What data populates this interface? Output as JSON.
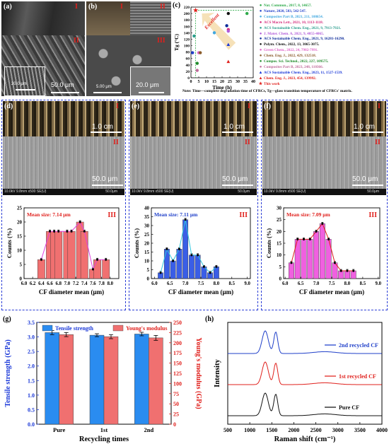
{
  "figure": {
    "panel_labels": {
      "a": "(a)",
      "b": "(b)",
      "c": "(c)",
      "d": "(d)",
      "e": "(e)",
      "f": "(f)",
      "g": "(g)",
      "h": "(h)"
    },
    "roman": {
      "I": "I",
      "II": "II",
      "III": "III"
    },
    "scalebars": {
      "a_inset": "20.0 μm",
      "a_main": "50.0 μm",
      "b_inset": "5.00 μm",
      "b_main": "20.0 μm",
      "cm": "1.0 cm",
      "sem": "50.0 μm"
    },
    "sem_strip": "10.0kV 9.8mm x500 SE(U)",
    "sem_strip_right": "50.0μm"
  },
  "panel_c": {
    "excellent": "Excellent",
    "ylabel": "Tg (°C)",
    "xlabel": "Time (h)",
    "note": "Note: Time—complete degradation time of CFRCs, Tg—glass transition temperature of CFRCs' matrix.",
    "legend": [
      {
        "label": "Nat. Commun., 2017, 8, 14657.",
        "color": "#2eaa4a",
        "marker": "circle"
      },
      {
        "label": "Nature, 2020, 583, 542-547.",
        "color": "#1f3fc9",
        "marker": "circle"
      },
      {
        "label": "Composites Part B, 2021, 211, 108654.",
        "color": "#41a8e0",
        "marker": "circle"
      },
      {
        "label": "ACS Macro Lett., 2021, 10, 1113-1118.",
        "color": "#d42a7a",
        "marker": "circle"
      },
      {
        "label": "ACS Sustainable Chem. Eng., 2021, 9, 7913-7921.",
        "color": "#2a9c8c",
        "marker": "circle"
      },
      {
        "label": "J. Mater. Chem. A, 2021, 9, 4055-4065.",
        "color": "#b25ad8",
        "marker": "circle"
      },
      {
        "label": "ACS Sustainable Chem. Eng., 2021, 9, 16281-16290.",
        "color": "#0c2a9a",
        "marker": "circle"
      },
      {
        "label": "Polym. Chem., 2022, 13, 3065-3075.",
        "color": "#111111",
        "marker": "circle"
      },
      {
        "label": "Green Chem., 2022, 24, 7982-7991.",
        "color": "#e065c8",
        "marker": "circle"
      },
      {
        "label": "Chem. Eng. J., 2022, 429, 132518.",
        "color": "#8a5a2a",
        "marker": "circle"
      },
      {
        "label": "Compos. Sci. Technol., 2022, 227, 109575.",
        "color": "#1f8a2a",
        "marker": "circle"
      },
      {
        "label": "Composites Part B, 2023, 248, 110366.",
        "color": "#c06a9a",
        "marker": "circle"
      },
      {
        "label": "ACS Sustainable Chem. Eng., 2023, 11, 1527-1539.",
        "color": "#1a38d8",
        "marker": "triangle"
      },
      {
        "label": "Chem. Eng. J., 2023, 454, 139992.",
        "color": "#e0201c",
        "marker": "triangle"
      },
      {
        "label": "This work",
        "color": "#e0201c",
        "marker": "star"
      }
    ]
  },
  "chart_data": [
    {
      "id": "c",
      "type": "scatter",
      "xlabel": "Time (h)",
      "ylabel": "Tg (°C)",
      "xlim": [
        0,
        40
      ],
      "ylim": [
        0,
        220
      ],
      "xticks": [
        0,
        5,
        10,
        15,
        20,
        25,
        30,
        35,
        40
      ],
      "yticks": [
        0,
        20,
        40,
        60,
        80,
        100,
        120,
        140,
        160,
        180,
        200,
        220
      ],
      "points": [
        {
          "x": 36,
          "y": 200,
          "color": "#2eaa4a",
          "marker": "circle"
        },
        {
          "x": 24,
          "y": 200,
          "color": "#111111",
          "marker": "circle"
        },
        {
          "x": 23,
          "y": 162,
          "color": "#0c2a9a",
          "marker": "circle"
        },
        {
          "x": 24,
          "y": 150,
          "color": "#d42a7a",
          "marker": "circle"
        },
        {
          "x": 24,
          "y": 145,
          "color": "#b25ad8",
          "marker": "circle"
        },
        {
          "x": 24,
          "y": 103,
          "color": "#1a38d8",
          "marker": "triangle"
        },
        {
          "x": 24,
          "y": 50,
          "color": "#e0201c",
          "marker": "triangle"
        },
        {
          "x": 15,
          "y": 140,
          "color": "#41a8e0",
          "marker": "circle"
        },
        {
          "x": 2,
          "y": 130,
          "color": "#2a9c8c",
          "marker": "circle"
        },
        {
          "x": 1,
          "y": 78,
          "color": "#1f3fc9",
          "marker": "circle"
        },
        {
          "x": 5,
          "y": 78,
          "color": "#e065c8",
          "marker": "circle"
        },
        {
          "x": 6,
          "y": 78,
          "color": "#8a5a2a",
          "marker": "circle"
        },
        {
          "x": 4,
          "y": 45,
          "color": "#1f8a2a",
          "marker": "circle"
        },
        {
          "x": 4,
          "y": 23,
          "color": "#c06a9a",
          "marker": "circle"
        },
        {
          "x": 3,
          "y": 210,
          "color": "#e0201c",
          "marker": "star"
        }
      ],
      "guide": {
        "x": 3,
        "y": 210,
        "color": "#2eaa4a"
      }
    },
    {
      "id": "d",
      "type": "bar",
      "title": "Mean size: 7.14 μm",
      "xlabel": "CF diameter mean (μm)",
      "ylabel": "Counts (%)",
      "xlim": [
        6.0,
        8.2
      ],
      "ylim": [
        0,
        25
      ],
      "xticks": [
        "6.0",
        "6.2",
        "6.4",
        "6.6",
        "6.8",
        "7.0",
        "7.2",
        "7.4",
        "7.6",
        "7.8",
        "8.0"
      ],
      "yticks": [
        0,
        5,
        10,
        15,
        20,
        25
      ],
      "x": [
        6.4,
        6.6,
        6.7,
        6.8,
        7.0,
        7.1,
        7.3,
        7.4,
        7.6,
        7.7,
        7.9
      ],
      "values": [
        6.7,
        16.7,
        16.7,
        16.7,
        16.7,
        16.7,
        20.0,
        16.7,
        3.3,
        6.7,
        6.7
      ],
      "bar_color": "#f07070",
      "line_color": "#e040e0"
    },
    {
      "id": "e",
      "type": "bar",
      "title": "Mean size: 7.11 μm",
      "xlabel": "CF diameter mean (μm)",
      "ylabel": "Counts (%)",
      "xlim": [
        5.9,
        9.1
      ],
      "ylim": [
        0,
        40
      ],
      "xticks": [
        "6.0",
        "6.5",
        "7.0",
        "7.5",
        "8.0",
        "8.5",
        "9.0"
      ],
      "yticks": [
        0,
        5,
        10,
        15,
        20,
        25,
        30,
        35,
        40
      ],
      "x": [
        6.2,
        6.4,
        6.6,
        6.8,
        7.0,
        7.2,
        7.4,
        7.6,
        7.8,
        8.0
      ],
      "values": [
        3.3,
        16.7,
        10.0,
        16.7,
        33.3,
        13.3,
        13.3,
        6.7,
        3.3,
        6.7
      ],
      "bar_color": "#3a5ee6",
      "line_color": "#30c8e0"
    },
    {
      "id": "f",
      "type": "bar",
      "title": "Mean size: 7.09 μm",
      "xlabel": "CF diameter mean (μm)",
      "ylabel": "Counts (%)",
      "xlim": [
        5.95,
        9.05
      ],
      "ylim": [
        0,
        30
      ],
      "xticks": [
        "6.0",
        "6.5",
        "7.0",
        "7.5",
        "8.0",
        "8.5",
        "9.0"
      ],
      "yticks": [
        0,
        5,
        10,
        15,
        20,
        25,
        30
      ],
      "x": [
        6.2,
        6.4,
        6.6,
        6.8,
        7.0,
        7.2,
        7.4,
        7.6,
        7.8,
        8.0,
        8.2
      ],
      "values": [
        6.7,
        16.7,
        16.7,
        16.7,
        20.0,
        23.3,
        16.7,
        6.7,
        3.3,
        3.3,
        3.3
      ],
      "bar_color": "#f060e0",
      "line_color": "#e0201c"
    },
    {
      "id": "g",
      "type": "bar",
      "xlabel": "Recycling times",
      "ylabel": "Tensile strength (GPa)",
      "y2label": "Young's modulus (GPa)",
      "categories": [
        "Pure",
        "1st",
        "2nd"
      ],
      "ylim": [
        0,
        3.5
      ],
      "y2lim": [
        0,
        250
      ],
      "yticks": [
        0.0,
        0.5,
        1.0,
        1.5,
        2.0,
        2.5,
        3.0,
        3.5
      ],
      "y2ticks": [
        0,
        25,
        50,
        75,
        100,
        125,
        150,
        175,
        200,
        225,
        250
      ],
      "series": [
        {
          "name": "Tensile strength",
          "values": [
            3.15,
            3.06,
            3.1
          ],
          "errors": [
            0.07,
            0.05,
            0.06
          ],
          "color": "#2a8cf0",
          "axis": "left"
        },
        {
          "name": "Young's modulus",
          "values": [
            220,
            215,
            212
          ],
          "errors": [
            5,
            5,
            6
          ],
          "color": "#f07070",
          "axis": "right"
        }
      ]
    },
    {
      "id": "h",
      "type": "line",
      "xlabel": "Raman shift (cm⁻¹)",
      "ylabel": "Intensity",
      "xlim": [
        500,
        4000
      ],
      "xticks": [
        500,
        1000,
        1500,
        2000,
        2500,
        3000,
        3500,
        4000
      ],
      "series": [
        {
          "name": "2nd recycled CF",
          "color": "#1f3fc9",
          "offset": 2
        },
        {
          "name": "1st recycled CF",
          "color": "#e0201c",
          "offset": 1
        },
        {
          "name": "Pure CF",
          "color": "#111111",
          "offset": 0
        }
      ],
      "peaks": {
        "D": 1350,
        "G": 1590,
        "D_height": 1.0,
        "G_height": 0.95
      }
    }
  ]
}
